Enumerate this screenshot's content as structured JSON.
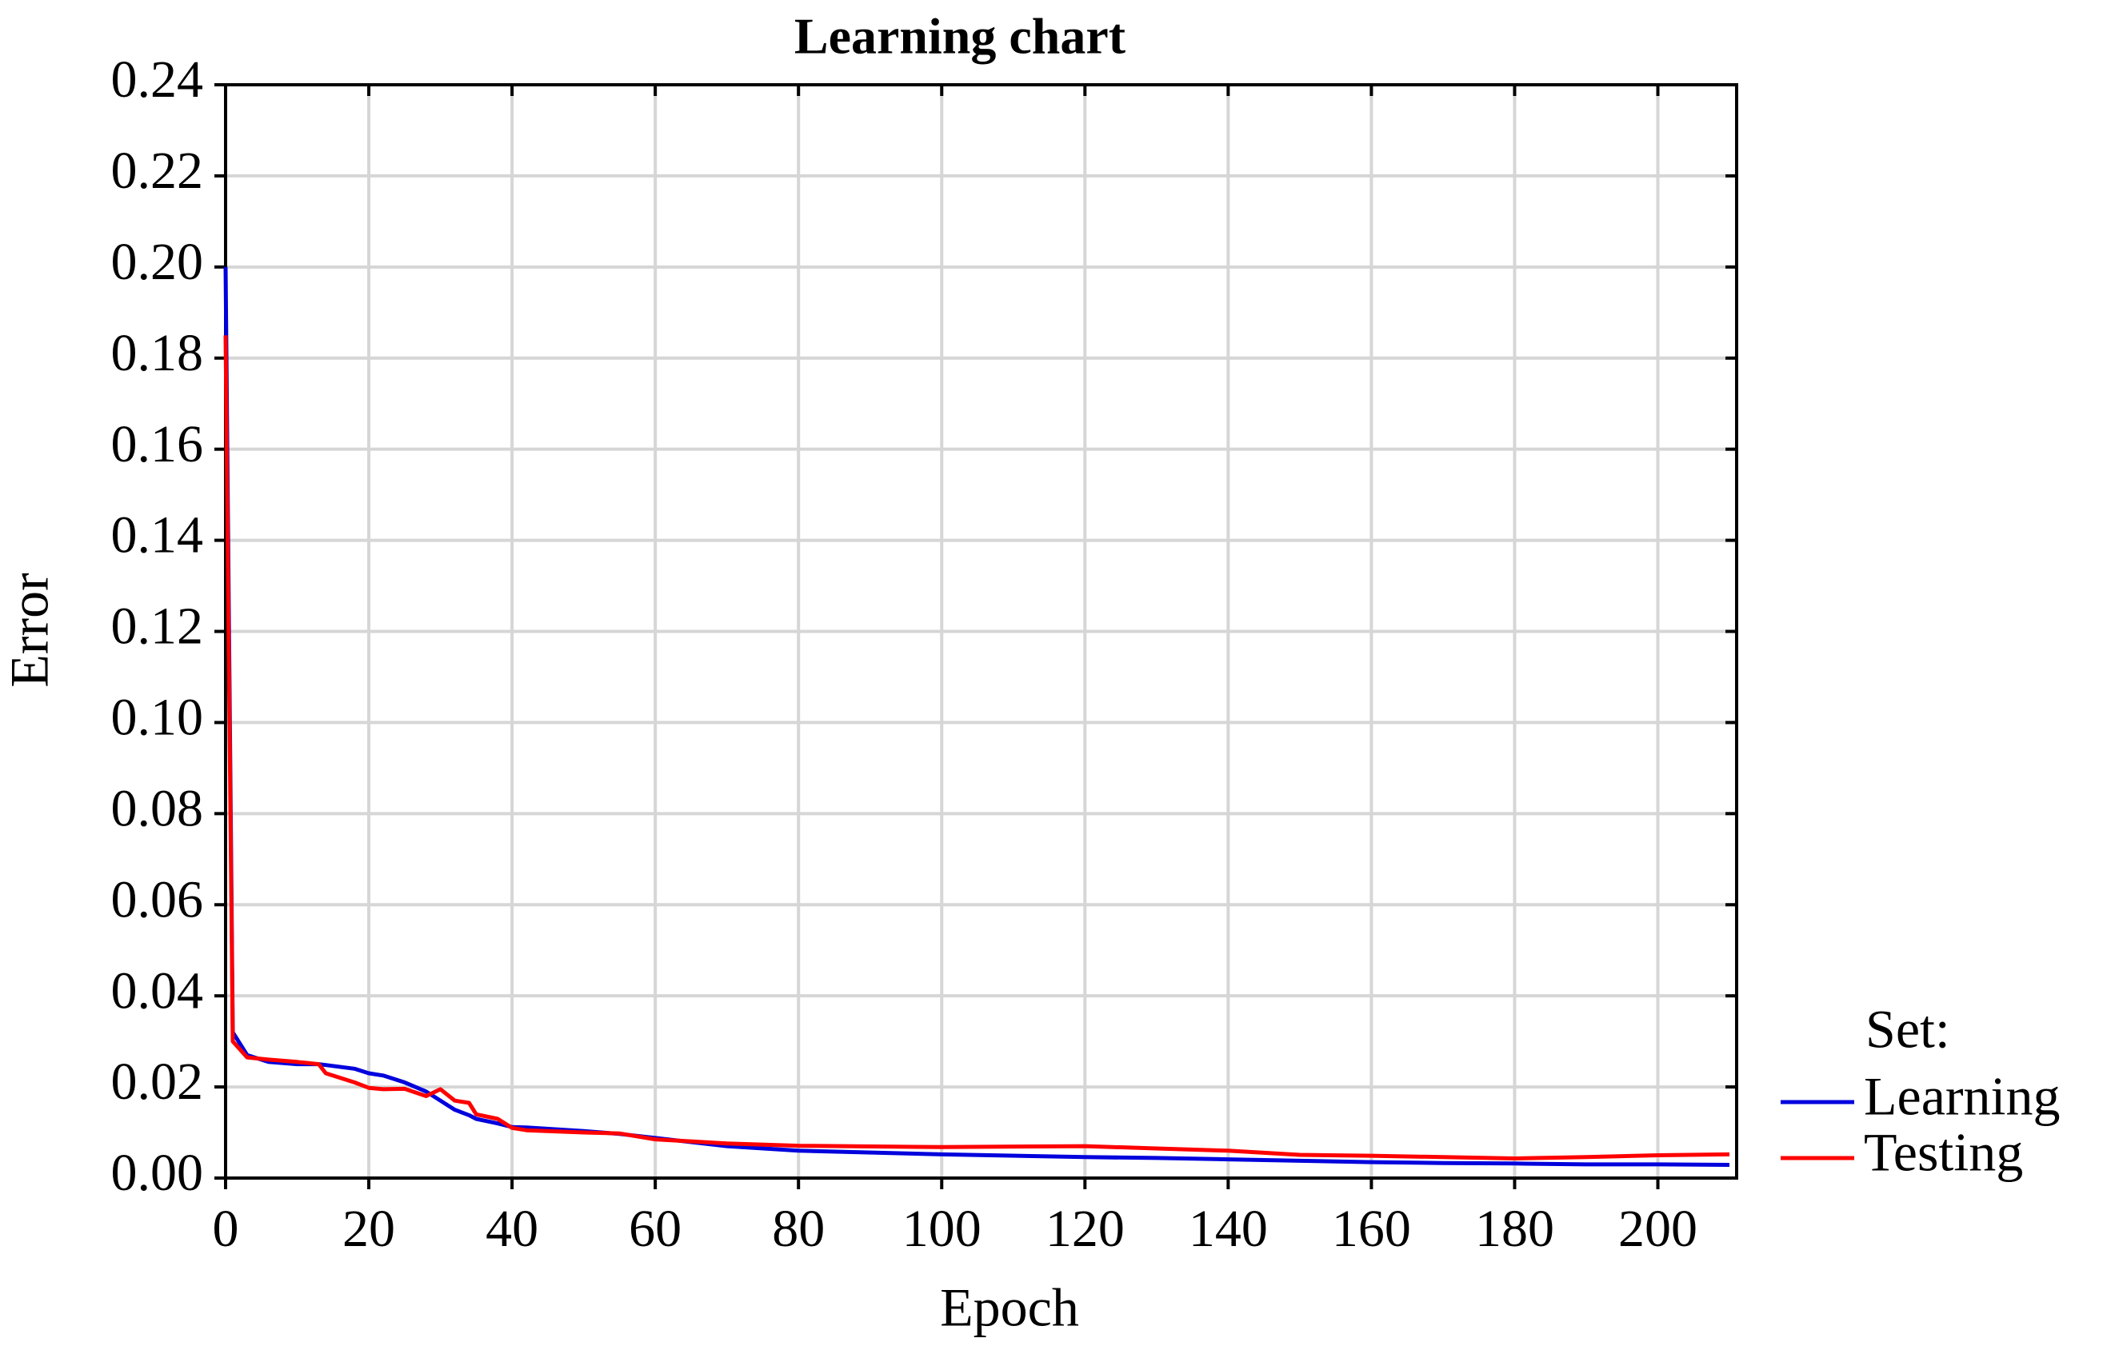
{
  "chart_data": {
    "type": "line",
    "title": "Learning chart",
    "x_label": "Epoch",
    "y_label": "Error",
    "legend_title": "Set:",
    "legend": "right",
    "grid": true,
    "x": [
      0,
      1,
      3,
      6,
      10,
      13,
      14,
      18,
      20,
      22,
      25,
      28,
      30,
      32,
      34,
      35,
      38,
      40,
      42,
      50,
      55,
      60,
      70,
      80,
      100,
      120,
      130,
      140,
      150,
      160,
      170,
      180,
      190,
      200,
      210
    ],
    "series": [
      {
        "name": "Learning",
        "color": "#0000dd",
        "values": [
          0.2,
          0.032,
          0.027,
          0.0255,
          0.025,
          0.025,
          0.0248,
          0.024,
          0.023,
          0.0225,
          0.021,
          0.019,
          0.017,
          0.015,
          0.0138,
          0.013,
          0.012,
          0.0112,
          0.0111,
          0.0103,
          0.0097,
          0.0088,
          0.007,
          0.006,
          0.0052,
          0.0046,
          0.0044,
          0.0041,
          0.0038,
          0.0035,
          0.0033,
          0.0032,
          0.003,
          0.003,
          0.0029
        ]
      },
      {
        "name": "Testing",
        "color": "#ff0000",
        "values": [
          0.185,
          0.03,
          0.0265,
          0.026,
          0.0255,
          0.025,
          0.023,
          0.021,
          0.0198,
          0.0195,
          0.0196,
          0.018,
          0.0195,
          0.017,
          0.0165,
          0.014,
          0.013,
          0.011,
          0.0105,
          0.01,
          0.0098,
          0.0085,
          0.0076,
          0.0071,
          0.0068,
          0.007,
          0.0065,
          0.006,
          0.0051,
          0.0049,
          0.0046,
          0.0043,
          0.0046,
          0.005,
          0.0052
        ]
      }
    ],
    "xlim": [
      0,
      211
    ],
    "xticks": [
      0,
      20,
      40,
      60,
      80,
      100,
      120,
      140,
      160,
      180,
      200
    ],
    "ylim": [
      0,
      0.24
    ],
    "yticks": [
      {
        "value": 0,
        "label": "0.00"
      },
      0.02,
      0.04,
      0.06,
      0.08,
      {
        "value": 0.1,
        "label": "0.10"
      },
      0.12,
      0.14,
      0.16,
      0.18,
      {
        "value": 0.2,
        "label": "0.20"
      },
      0.22,
      0.24
    ]
  }
}
